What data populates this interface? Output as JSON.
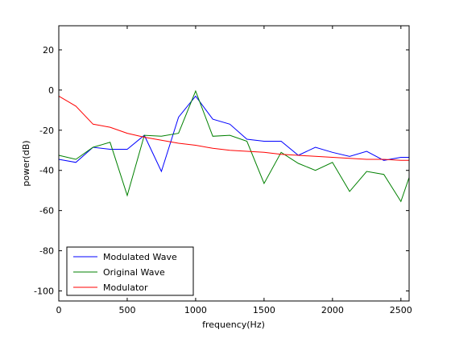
{
  "chart_data": {
    "type": "line",
    "title": "",
    "xlabel": "frequency(Hz)",
    "ylabel": "power(dB)",
    "xlim": [
      0,
      2560
    ],
    "ylim": [
      -105,
      32
    ],
    "xticks": [
      0,
      500,
      1000,
      1500,
      2000,
      2500
    ],
    "yticks": [
      -100,
      -80,
      -60,
      -40,
      -20,
      0,
      20
    ],
    "grid": false,
    "legend_position": "bottom-left",
    "series": [
      {
        "name": "Modulated Wave",
        "color": "#0000ff",
        "x": [
          0,
          125,
          250,
          375,
          500,
          625,
          750,
          875,
          1000,
          1125,
          1250,
          1375,
          1500,
          1625,
          1750,
          1875,
          2000,
          2125,
          2250,
          2375,
          2500,
          2560
        ],
        "y": [
          -34.5,
          -36,
          -28.5,
          -29.5,
          -29.5,
          -22.5,
          -40.5,
          -13.5,
          -3,
          -14.5,
          -17,
          -24.5,
          -25.5,
          -25.5,
          -32.5,
          -28.5,
          -31,
          -33,
          -30.5,
          -35,
          -33.5,
          -33.5
        ]
      },
      {
        "name": "Original Wave",
        "color": "#008000",
        "x": [
          0,
          125,
          250,
          375,
          500,
          625,
          750,
          875,
          1000,
          1125,
          1250,
          1375,
          1500,
          1625,
          1750,
          1875,
          2000,
          2125,
          2250,
          2375,
          2500,
          2560
        ],
        "y": [
          -32.5,
          -34.5,
          -28.5,
          -26,
          -52.5,
          -22.5,
          -23,
          -21.5,
          -0.5,
          -23,
          -22.5,
          -25.5,
          -46.5,
          -31,
          -36.5,
          -40,
          -36,
          -50.5,
          -40.5,
          -42,
          -55.5,
          -43.5
        ]
      },
      {
        "name": "Modulator",
        "color": "#ff0000",
        "x": [
          0,
          125,
          250,
          375,
          500,
          625,
          750,
          875,
          1000,
          1125,
          1250,
          1375,
          1500,
          1625,
          1750,
          1875,
          2000,
          2125,
          2250,
          2375,
          2500,
          2560
        ],
        "y": [
          -3,
          -8,
          -17,
          -18.5,
          -21.5,
          -23.5,
          -25,
          -26.5,
          -27.5,
          -29,
          -30,
          -30.5,
          -31,
          -32,
          -32.5,
          -33,
          -33.5,
          -34,
          -34.5,
          -34.5,
          -35,
          -35
        ]
      }
    ]
  }
}
